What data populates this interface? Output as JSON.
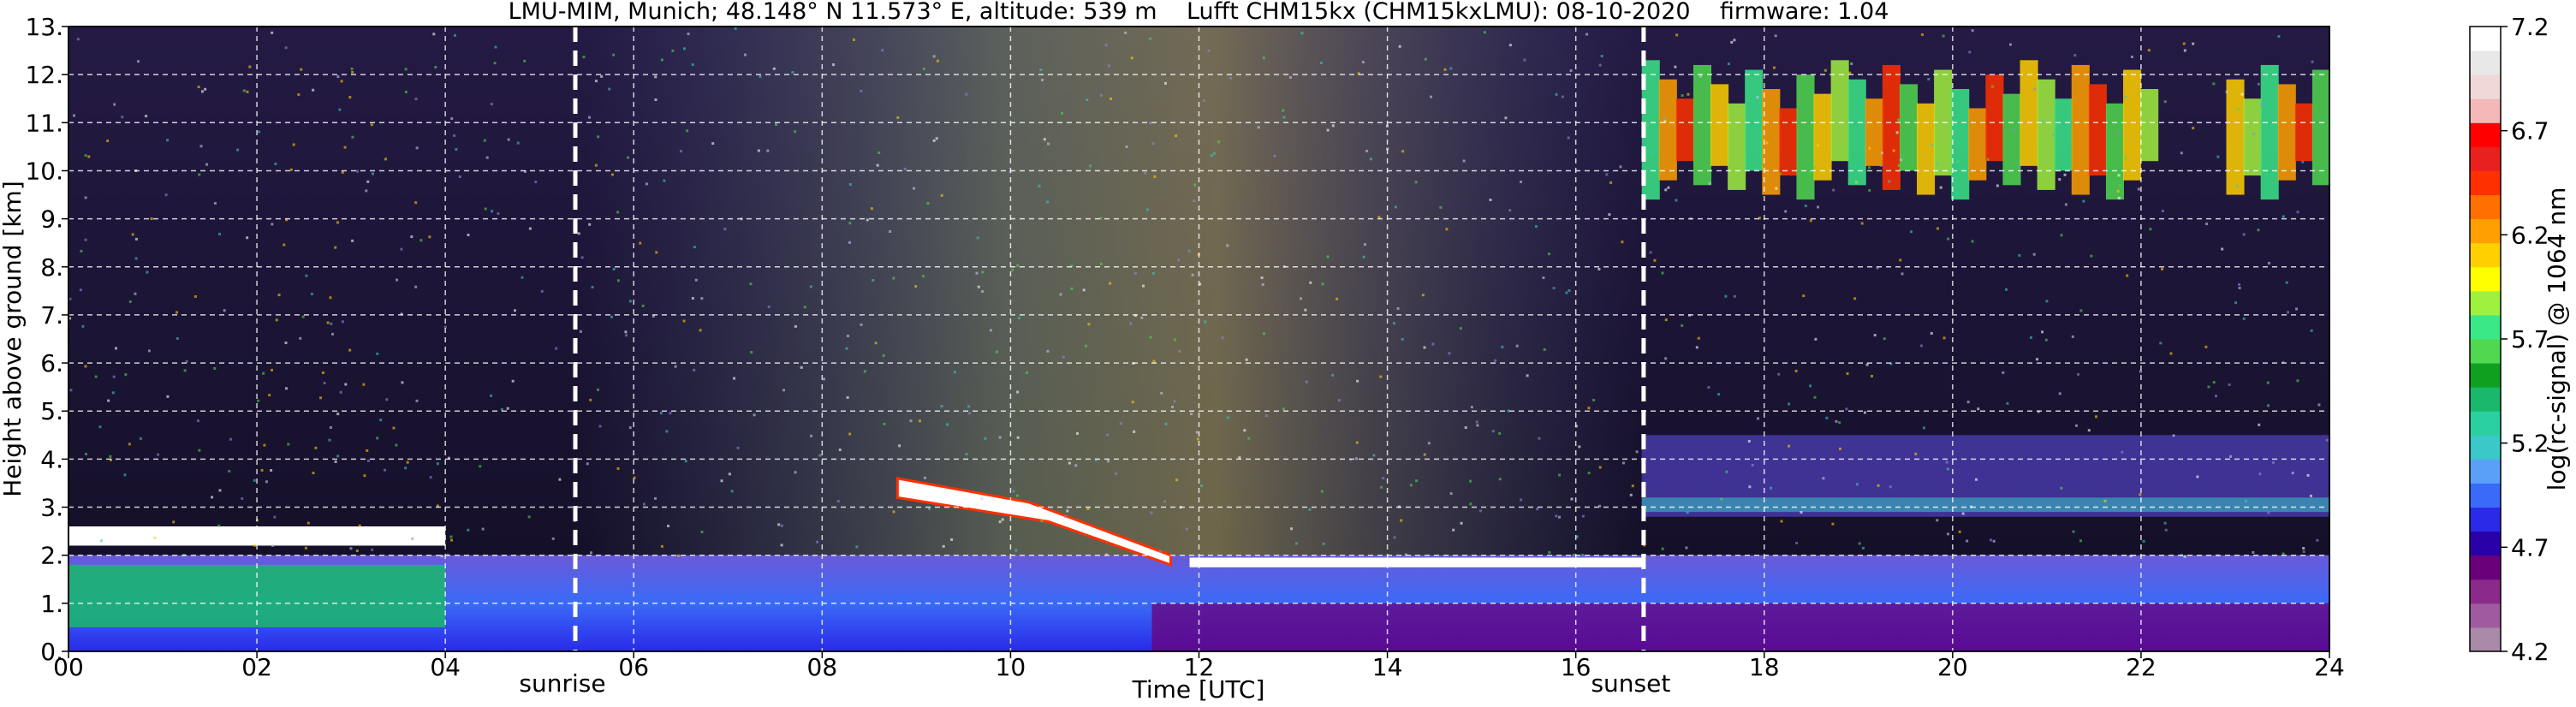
{
  "chart_data": {
    "type": "heatmap",
    "title": "LMU-MIM, Munich; 48.148° N 11.573° E, altitude: 539 m    Lufft CHM15kx (CHM15kxLMU): 08-10-2020    firmware: 1.04",
    "xlabel": "Time [UTC]",
    "ylabel": "Height above ground [km]",
    "xlim": [
      0,
      24
    ],
    "ylim": [
      0,
      13
    ],
    "x_ticks": [
      "00",
      "02",
      "04",
      "06",
      "08",
      "10",
      "12",
      "14",
      "16",
      "18",
      "20",
      "22",
      "24"
    ],
    "x_tick_values": [
      0,
      2,
      4,
      6,
      8,
      10,
      12,
      14,
      16,
      18,
      20,
      22,
      24
    ],
    "y_ticks": [
      "0.",
      "1.",
      "2.",
      "3.",
      "4.",
      "5.",
      "6.",
      "7.",
      "8.",
      "9.",
      "10.",
      "11.",
      "12.",
      "13."
    ],
    "y_tick_values": [
      0,
      1,
      2,
      3,
      4,
      5,
      6,
      7,
      8,
      9,
      10,
      11,
      12,
      13
    ],
    "grid": true,
    "colorbar": {
      "label": "log(rc-signal) @ 1064 nm",
      "range": [
        4.2,
        7.2
      ],
      "ticks": [
        "4.2",
        "4.7",
        "5.2",
        "5.7",
        "6.2",
        "6.7",
        "7.2"
      ],
      "tick_values": [
        4.2,
        4.7,
        5.2,
        5.7,
        6.2,
        6.7,
        7.2
      ],
      "colors": [
        "#a88aa8",
        "#a05aa0",
        "#8a2a8a",
        "#6a007a",
        "#2a00a8",
        "#2a2ae8",
        "#3a6af8",
        "#5aa0f8",
        "#3ac8c8",
        "#2ad0a0",
        "#1ab86a",
        "#10a020",
        "#50d850",
        "#3ae888",
        "#a0f040",
        "#ffff00",
        "#ffd000",
        "#ffa000",
        "#ff7000",
        "#ff3000",
        "#e82020",
        "#ff0000",
        "#f4b8b8",
        "#f0d8d8",
        "#e8e8e8",
        "#ffffff"
      ]
    },
    "markers": [
      {
        "label": "sunrise",
        "x": 5.38
      },
      {
        "label": "sunset",
        "x": 16.72
      }
    ],
    "features": [
      {
        "name": "boundary-layer",
        "from": 0,
        "to": 24,
        "height": [
          0,
          2.0
        ]
      },
      {
        "name": "low-cloud-band",
        "from": 0,
        "to": 4.0,
        "height": [
          2.2,
          2.6
        ]
      },
      {
        "name": "descending-cloud",
        "from": 8.8,
        "to": 11.7,
        "height": [
          2.0,
          3.6
        ]
      },
      {
        "name": "elevated-aerosol",
        "from": 16.7,
        "to": 24,
        "height": [
          2.8,
          4.5
        ]
      },
      {
        "name": "cirrus",
        "from": 16.7,
        "to": 24,
        "height": [
          9.4,
          12.3
        ]
      }
    ]
  }
}
